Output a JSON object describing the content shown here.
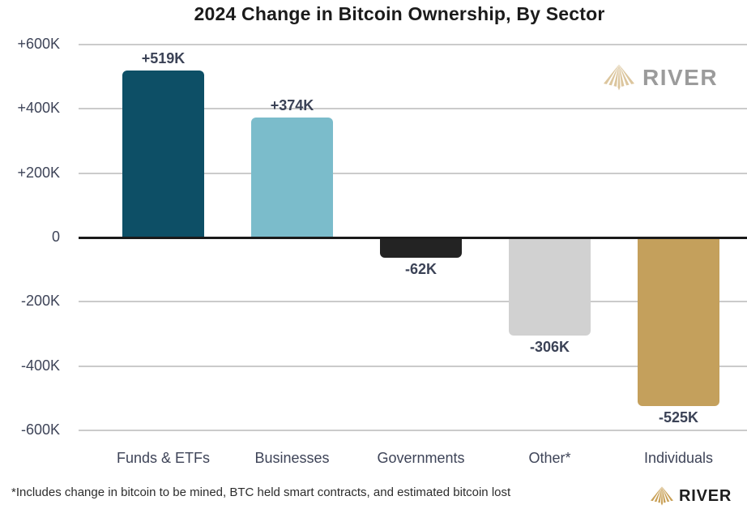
{
  "chart_data": {
    "type": "bar",
    "title": "2024 Change in Bitcoin Ownership, By Sector",
    "categories": [
      "Funds & ETFs",
      "Businesses",
      "Governments",
      "Other*",
      "Individuals"
    ],
    "values": [
      519,
      374,
      -62,
      -306,
      -525
    ],
    "value_labels": [
      "+519K",
      "+374K",
      "-62K",
      "-306K",
      "-525K"
    ],
    "bar_colors": [
      "#0d4f66",
      "#7bbccb",
      "#232323",
      "#d1d1d1",
      "#c4a05c"
    ],
    "ytick_labels": [
      "+600K",
      "+400K",
      "+200K",
      "0",
      "-200K",
      "-400K",
      "-600K"
    ],
    "ytick_values": [
      600,
      400,
      200,
      0,
      -200,
      -400,
      -600
    ],
    "ylim": [
      -600,
      600
    ],
    "xlabel": "",
    "ylabel": "",
    "grid": true,
    "legend": "none",
    "gridline_color": "#cbcbcb",
    "zero_axis_color": "#1a1a1a",
    "label_color": "#3b4256"
  },
  "footnote": "*Includes change in bitcoin to be mined, BTC held smart contracts, and estimated bitcoin lost",
  "branding": {
    "logo_text": "RIVER",
    "logo_icon": "river-delta-icon",
    "icon_color_top": "#dcc69e",
    "icon_color_bottom": "#c9a158",
    "text_color_top": "#9b9b9b",
    "text_color_bottom": "#1e1e1e"
  }
}
